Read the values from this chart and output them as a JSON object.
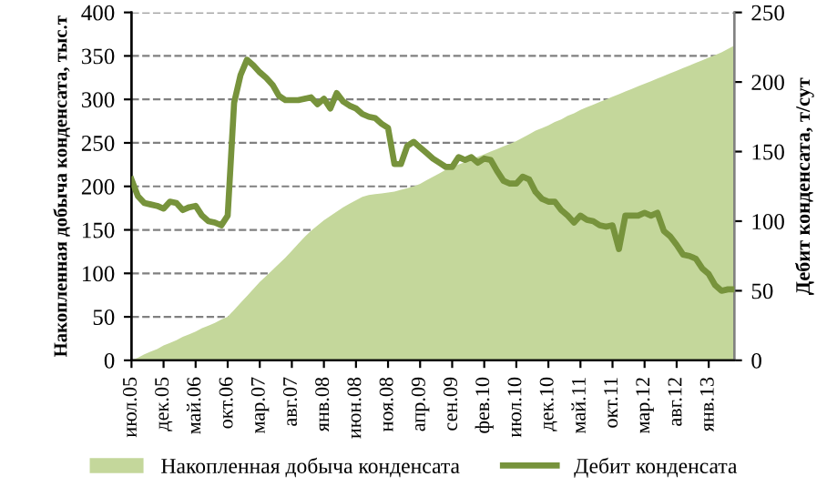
{
  "chart_data": {
    "type": "area",
    "categories": [
      "июл.05",
      null,
      null,
      null,
      null,
      "дек.05",
      null,
      null,
      null,
      null,
      "май.06",
      null,
      null,
      null,
      null,
      "окт.06",
      null,
      null,
      null,
      null,
      "мар.07",
      null,
      null,
      null,
      null,
      "авг.07",
      null,
      null,
      null,
      null,
      "янв.08",
      null,
      null,
      null,
      null,
      "июн.08",
      null,
      null,
      null,
      null,
      "ноя.08",
      null,
      null,
      null,
      null,
      "апр.09",
      null,
      null,
      null,
      null,
      "сен.09",
      null,
      null,
      null,
      null,
      "фев.10",
      null,
      null,
      null,
      null,
      "июл.10",
      null,
      null,
      null,
      null,
      "дек.10",
      null,
      null,
      null,
      null,
      "май.11",
      null,
      null,
      null,
      null,
      "окт.11",
      null,
      null,
      null,
      null,
      "мар.12",
      null,
      null,
      null,
      null,
      "авг.12",
      null,
      null,
      null,
      null,
      "янв.13",
      null,
      null,
      null,
      null
    ],
    "series": [
      {
        "name": "Накопленная добыча конденсата",
        "color": "#c4d79b",
        "values": [
          0,
          3,
          7,
          10,
          13,
          17,
          20,
          23,
          27,
          30,
          33,
          37,
          40,
          43,
          47,
          50,
          58,
          66,
          74,
          82,
          90,
          97,
          104,
          111,
          118,
          126,
          134,
          142,
          149,
          155,
          161,
          166,
          171,
          176,
          180,
          184,
          188,
          190,
          191,
          192,
          193,
          194,
          196,
          198,
          200,
          203,
          207,
          211,
          215,
          219,
          222,
          225,
          228,
          231,
          234,
          237,
          240,
          243,
          246,
          249,
          252,
          256,
          260,
          264,
          267,
          270,
          274,
          277,
          281,
          284,
          288,
          291,
          294,
          297,
          300,
          303,
          306,
          309,
          312,
          315,
          318,
          321,
          324,
          327,
          330,
          333,
          336,
          339,
          342,
          345,
          348,
          351,
          354,
          358,
          362
        ]
      },
      {
        "name": "Дебит конденсата",
        "type": "line",
        "axis": "y2",
        "color": "#77933c",
        "values": [
          130,
          118,
          113,
          112,
          111,
          109,
          114,
          113,
          108,
          110,
          111,
          104,
          100,
          99,
          97,
          104,
          185,
          205,
          216,
          212,
          207,
          203,
          198,
          190,
          187,
          187,
          187,
          188,
          189,
          184,
          188,
          181,
          192,
          186,
          183,
          181,
          177,
          175,
          174,
          170,
          167,
          141,
          141,
          154,
          157,
          153,
          149,
          145,
          142,
          139,
          139,
          146,
          144,
          146,
          142,
          145,
          144,
          136,
          129,
          127,
          127,
          132,
          130,
          121,
          116,
          114,
          114,
          108,
          104,
          99,
          104,
          101,
          100,
          97,
          96,
          97,
          80,
          104,
          104,
          104,
          106,
          104,
          106,
          93,
          89,
          83,
          76,
          75,
          73,
          66,
          62,
          54,
          50,
          51,
          51
        ]
      }
    ],
    "ylabel": "Накопленная добыча конденсата, тыс.т",
    "y2label": "Дебит конденсата, т/сут",
    "ylim": [
      0,
      400
    ],
    "yticks": [
      0,
      50,
      100,
      150,
      200,
      250,
      300,
      350,
      400
    ],
    "y2lim": [
      0,
      250
    ],
    "y2ticks": [
      0,
      50,
      100,
      150,
      200,
      250
    ],
    "grid": "y",
    "legend": "bottom",
    "marker": "none",
    "line_style": "solid"
  }
}
